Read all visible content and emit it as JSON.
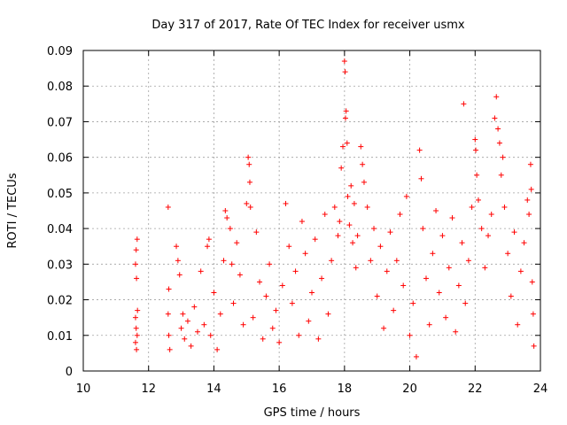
{
  "chart_data": {
    "type": "scatter",
    "title": "Day 317 of 2017, Rate Of TEC Index for receiver usmx",
    "xlabel": "GPS time / hours",
    "ylabel": "ROTI / TECUs",
    "xlim": [
      10,
      24
    ],
    "ylim": [
      0,
      0.09
    ],
    "x_ticks": [
      10,
      12,
      14,
      16,
      18,
      20,
      22,
      24
    ],
    "y_ticks": [
      0,
      0.01,
      0.02,
      0.03,
      0.04,
      0.05,
      0.06,
      0.07,
      0.08,
      0.09
    ],
    "x_tick_labels": [
      "10",
      "12",
      "14",
      "16",
      "18",
      "20",
      "22",
      "24"
    ],
    "y_tick_labels": [
      "0",
      "0.01",
      "0.02",
      "0.03",
      "0.04",
      "0.05",
      "0.06",
      "0.07",
      "0.08",
      "0.09"
    ],
    "grid": true,
    "legend": "none",
    "marker": "plus",
    "color": "#ff0000",
    "series": [
      {
        "points": [
          [
            11.6,
            0.03
          ],
          [
            11.62,
            0.034
          ],
          [
            11.65,
            0.037
          ],
          [
            11.63,
            0.026
          ],
          [
            11.6,
            0.015
          ],
          [
            11.62,
            0.012
          ],
          [
            11.65,
            0.01
          ],
          [
            11.6,
            0.008
          ],
          [
            11.63,
            0.006
          ],
          [
            11.66,
            0.017
          ],
          [
            12.6,
            0.046
          ],
          [
            12.62,
            0.023
          ],
          [
            12.6,
            0.016
          ],
          [
            12.62,
            0.01
          ],
          [
            12.65,
            0.006
          ],
          [
            12.85,
            0.035
          ],
          [
            12.9,
            0.031
          ],
          [
            12.95,
            0.027
          ],
          [
            13.0,
            0.012
          ],
          [
            13.05,
            0.016
          ],
          [
            13.1,
            0.009
          ],
          [
            13.2,
            0.014
          ],
          [
            13.3,
            0.007
          ],
          [
            13.4,
            0.018
          ],
          [
            13.5,
            0.011
          ],
          [
            13.6,
            0.028
          ],
          [
            13.7,
            0.013
          ],
          [
            13.8,
            0.035
          ],
          [
            13.85,
            0.037
          ],
          [
            13.9,
            0.01
          ],
          [
            14.0,
            0.022
          ],
          [
            14.1,
            0.006
          ],
          [
            14.2,
            0.016
          ],
          [
            14.3,
            0.031
          ],
          [
            14.35,
            0.045
          ],
          [
            14.4,
            0.043
          ],
          [
            14.5,
            0.04
          ],
          [
            14.55,
            0.03
          ],
          [
            14.6,
            0.019
          ],
          [
            14.7,
            0.036
          ],
          [
            14.8,
            0.027
          ],
          [
            14.9,
            0.013
          ],
          [
            15.0,
            0.047
          ],
          [
            15.05,
            0.06
          ],
          [
            15.08,
            0.058
          ],
          [
            15.1,
            0.053
          ],
          [
            15.12,
            0.046
          ],
          [
            15.2,
            0.015
          ],
          [
            15.3,
            0.039
          ],
          [
            15.4,
            0.025
          ],
          [
            15.5,
            0.009
          ],
          [
            15.6,
            0.021
          ],
          [
            15.7,
            0.03
          ],
          [
            15.8,
            0.012
          ],
          [
            15.9,
            0.017
          ],
          [
            16.0,
            0.008
          ],
          [
            16.1,
            0.024
          ],
          [
            16.2,
            0.047
          ],
          [
            16.3,
            0.035
          ],
          [
            16.4,
            0.019
          ],
          [
            16.5,
            0.028
          ],
          [
            16.6,
            0.01
          ],
          [
            16.7,
            0.042
          ],
          [
            16.8,
            0.033
          ],
          [
            16.9,
            0.014
          ],
          [
            17.0,
            0.022
          ],
          [
            17.1,
            0.037
          ],
          [
            17.2,
            0.009
          ],
          [
            17.3,
            0.026
          ],
          [
            17.4,
            0.044
          ],
          [
            17.5,
            0.016
          ],
          [
            17.6,
            0.031
          ],
          [
            17.7,
            0.046
          ],
          [
            17.8,
            0.038
          ],
          [
            17.85,
            0.042
          ],
          [
            17.9,
            0.057
          ],
          [
            17.95,
            0.063
          ],
          [
            18.0,
            0.087
          ],
          [
            18.02,
            0.084
          ],
          [
            18.05,
            0.073
          ],
          [
            18.03,
            0.071
          ],
          [
            18.08,
            0.064
          ],
          [
            18.1,
            0.049
          ],
          [
            18.15,
            0.041
          ],
          [
            18.2,
            0.052
          ],
          [
            18.25,
            0.036
          ],
          [
            18.3,
            0.047
          ],
          [
            18.35,
            0.029
          ],
          [
            18.4,
            0.038
          ],
          [
            18.5,
            0.063
          ],
          [
            18.55,
            0.058
          ],
          [
            18.6,
            0.053
          ],
          [
            18.7,
            0.046
          ],
          [
            18.8,
            0.031
          ],
          [
            18.9,
            0.04
          ],
          [
            19.0,
            0.021
          ],
          [
            19.1,
            0.035
          ],
          [
            19.2,
            0.012
          ],
          [
            19.3,
            0.028
          ],
          [
            19.4,
            0.039
          ],
          [
            19.5,
            0.017
          ],
          [
            19.6,
            0.031
          ],
          [
            19.7,
            0.044
          ],
          [
            19.8,
            0.024
          ],
          [
            19.9,
            0.049
          ],
          [
            20.0,
            0.01
          ],
          [
            20.1,
            0.019
          ],
          [
            20.2,
            0.004
          ],
          [
            20.3,
            0.062
          ],
          [
            20.35,
            0.054
          ],
          [
            20.4,
            0.04
          ],
          [
            20.5,
            0.026
          ],
          [
            20.6,
            0.013
          ],
          [
            20.7,
            0.033
          ],
          [
            20.8,
            0.045
          ],
          [
            20.9,
            0.022
          ],
          [
            21.0,
            0.038
          ],
          [
            21.1,
            0.015
          ],
          [
            21.2,
            0.029
          ],
          [
            21.3,
            0.043
          ],
          [
            21.4,
            0.011
          ],
          [
            21.5,
            0.024
          ],
          [
            21.6,
            0.036
          ],
          [
            21.65,
            0.075
          ],
          [
            21.7,
            0.019
          ],
          [
            21.8,
            0.031
          ],
          [
            21.9,
            0.046
          ],
          [
            22.0,
            0.065
          ],
          [
            22.02,
            0.062
          ],
          [
            22.05,
            0.055
          ],
          [
            22.1,
            0.048
          ],
          [
            22.2,
            0.04
          ],
          [
            22.3,
            0.029
          ],
          [
            22.4,
            0.038
          ],
          [
            22.5,
            0.044
          ],
          [
            22.6,
            0.071
          ],
          [
            22.65,
            0.077
          ],
          [
            22.7,
            0.068
          ],
          [
            22.75,
            0.064
          ],
          [
            22.8,
            0.055
          ],
          [
            22.85,
            0.06
          ],
          [
            22.9,
            0.046
          ],
          [
            23.0,
            0.033
          ],
          [
            23.1,
            0.021
          ],
          [
            23.2,
            0.039
          ],
          [
            23.3,
            0.013
          ],
          [
            23.4,
            0.028
          ],
          [
            23.5,
            0.036
          ],
          [
            23.6,
            0.048
          ],
          [
            23.65,
            0.044
          ],
          [
            23.7,
            0.058
          ],
          [
            23.72,
            0.051
          ],
          [
            23.75,
            0.025
          ],
          [
            23.78,
            0.016
          ],
          [
            23.8,
            0.007
          ]
        ]
      }
    ]
  }
}
